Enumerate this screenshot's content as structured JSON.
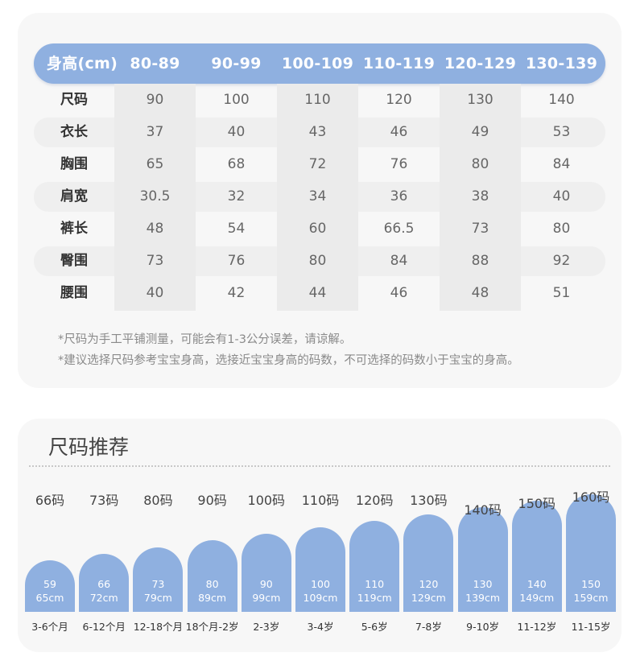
{
  "size_table": {
    "header_label": "身高(cm)",
    "height_ranges": [
      "80-89",
      "90-99",
      "100-109",
      "110-119",
      "120-129",
      "130-139"
    ],
    "rows": [
      {
        "label": "尺码",
        "values": [
          "90",
          "100",
          "110",
          "120",
          "130",
          "140"
        ]
      },
      {
        "label": "衣长",
        "values": [
          "37",
          "40",
          "43",
          "46",
          "49",
          "53"
        ]
      },
      {
        "label": "胸围",
        "values": [
          "65",
          "68",
          "72",
          "76",
          "80",
          "84"
        ]
      },
      {
        "label": "肩宽",
        "values": [
          "30.5",
          "32",
          "34",
          "36",
          "38",
          "40"
        ]
      },
      {
        "label": "裤长",
        "values": [
          "48",
          "54",
          "60",
          "66.5",
          "73",
          "80"
        ]
      },
      {
        "label": "臀围",
        "values": [
          "73",
          "76",
          "80",
          "84",
          "88",
          "92"
        ]
      },
      {
        "label": "腰围",
        "values": [
          "40",
          "42",
          "44",
          "46",
          "48",
          "51"
        ]
      }
    ],
    "notes": [
      "*尺码为手工平铺测量，可能会有1-3公分误差，请谅解。",
      "*建议选择尺码参考宝宝身高，选接近宝宝身高的码数，不可选择的码数小于宝宝的身高。"
    ]
  },
  "recommend": {
    "title": "尺码推荐",
    "items": [
      {
        "size": "66码",
        "height_top": "59",
        "height_bottom": "65cm",
        "age": "3-6个月",
        "level": 1
      },
      {
        "size": "73码",
        "height_top": "66",
        "height_bottom": "72cm",
        "age": "6-12个月",
        "level": 2
      },
      {
        "size": "80码",
        "height_top": "73",
        "height_bottom": "79cm",
        "age": "12-18个月",
        "level": 3
      },
      {
        "size": "90码",
        "height_top": "80",
        "height_bottom": "89cm",
        "age": "18个月-2岁",
        "level": 4
      },
      {
        "size": "100码",
        "height_top": "90",
        "height_bottom": "99cm",
        "age": "2-3岁",
        "level": 5
      },
      {
        "size": "110码",
        "height_top": "100",
        "height_bottom": "109cm",
        "age": "3-4岁",
        "level": 6
      },
      {
        "size": "120码",
        "height_top": "110",
        "height_bottom": "119cm",
        "age": "5-6岁",
        "level": 7
      },
      {
        "size": "130码",
        "height_top": "120",
        "height_bottom": "129cm",
        "age": "7-8岁",
        "level": 8
      },
      {
        "size": "140码",
        "height_top": "130",
        "height_bottom": "139cm",
        "age": "9-10岁",
        "level": 9
      },
      {
        "size": "150码",
        "height_top": "140",
        "height_bottom": "149cm",
        "age": "11-12岁",
        "level": 10
      },
      {
        "size": "160码",
        "height_top": "150",
        "height_bottom": "159cm",
        "age": "11-15岁",
        "level": 11
      }
    ]
  },
  "colors": {
    "accent": "#8fb0e0",
    "card_bg": "#f7f7f7"
  }
}
